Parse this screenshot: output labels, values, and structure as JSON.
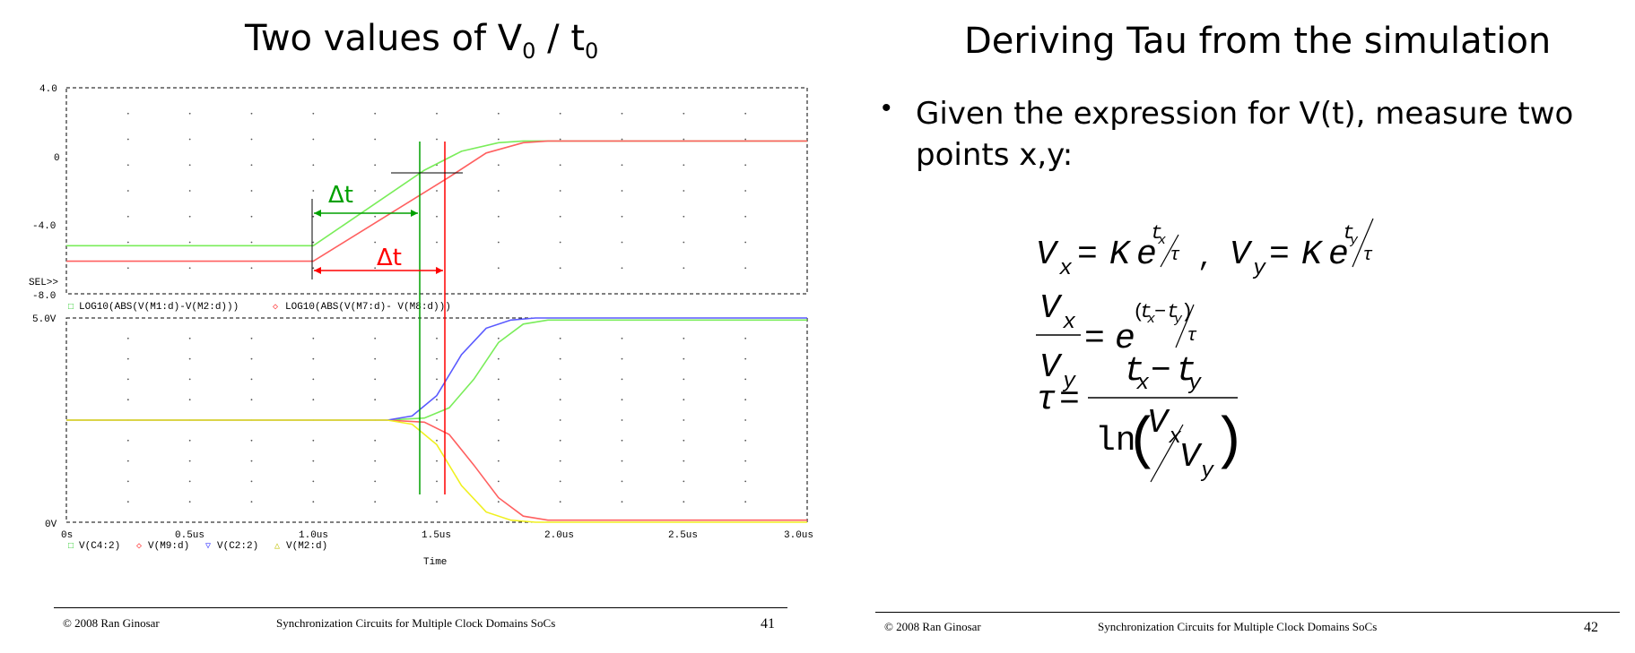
{
  "left_slide": {
    "title_main": "Two values of V",
    "title_sub0": "0",
    "title_slash": " / t",
    "title_sub1": "0",
    "footer": {
      "copyright": "© 2008 Ran Ginosar",
      "course": "Synchronization Circuits for Multiple Clock Domains SoCs",
      "page": "41"
    },
    "plot": {
      "top_axis": {
        "ticks": [
          "4.0",
          "0",
          "-4.0",
          "-8.0"
        ],
        "ylim": [
          -8,
          4
        ]
      },
      "bottom_axis": {
        "ticks": [
          "5.0V",
          "0V"
        ],
        "ylim": [
          0,
          5
        ]
      },
      "sel_label": "SEL>>",
      "x_ticks": [
        "0s",
        "0.5us",
        "1.0us",
        "1.5us",
        "2.0us",
        "2.5us",
        "3.0us"
      ],
      "xlim": [
        0,
        3.0
      ],
      "xlabel": "Time",
      "top_legend": [
        {
          "text": "LOG10(ABS(V(M1:d)-V(M2:d)))",
          "color": "#2ecc2e",
          "marker": "□"
        },
        {
          "text": "LOG10(ABS(V(M7:d)- V(M8:d)))",
          "color": "#ff4040",
          "marker": "◇"
        }
      ],
      "bottom_legend": [
        {
          "text": "V(C4:2)",
          "color": "#2ecc2e",
          "marker": "□"
        },
        {
          "text": "V(M9:d)",
          "color": "#ff4040",
          "marker": "◇"
        },
        {
          "text": "V(C2:2)",
          "color": "#4040ff",
          "marker": "▽"
        },
        {
          "text": "V(M2:d)",
          "color": "#e0e000",
          "marker": "△"
        }
      ],
      "annotations": {
        "delta_green": "Δt",
        "delta_red": "Δt"
      }
    }
  },
  "chart_data": [
    {
      "type": "line",
      "ylim": [
        -8,
        4
      ],
      "xlim": [
        0,
        3.0
      ],
      "series": [
        {
          "name": "LOG10(ABS(V(M1:d)-V(M2:d)))",
          "color": "#7aed5a",
          "x": [
            0,
            1.0,
            1.45,
            1.6,
            1.75,
            1.85,
            3.0
          ],
          "y": [
            -5.2,
            -5.2,
            -0.8,
            0.3,
            0.8,
            0.9,
            0.9
          ]
        },
        {
          "name": "LOG10(ABS(V(M7:d)- V(M8:d)))",
          "color": "#ff6060",
          "x": [
            0,
            1.0,
            1.55,
            1.7,
            1.85,
            1.95,
            3.0
          ],
          "y": [
            -6.1,
            -6.1,
            -1.2,
            0.2,
            0.8,
            0.9,
            0.9
          ]
        }
      ]
    },
    {
      "type": "line",
      "ylim": [
        0,
        5
      ],
      "xlim": [
        0,
        3.0
      ],
      "xlabel": "Time",
      "series": [
        {
          "name": "V(C4:2)",
          "color": "#7aed5a",
          "x": [
            0,
            1.3,
            1.45,
            1.55,
            1.65,
            1.75,
            1.85,
            1.95,
            3.0
          ],
          "y": [
            2.5,
            2.5,
            2.55,
            2.8,
            3.5,
            4.4,
            4.85,
            4.95,
            4.95
          ]
        },
        {
          "name": "V(M9:d)",
          "color": "#ff6060",
          "x": [
            0,
            1.3,
            1.45,
            1.55,
            1.65,
            1.75,
            1.85,
            1.95,
            3.0
          ],
          "y": [
            2.5,
            2.5,
            2.45,
            2.15,
            1.4,
            0.6,
            0.15,
            0.05,
            0.05
          ]
        },
        {
          "name": "V(C2:2)",
          "color": "#5a5aff",
          "x": [
            0,
            1.3,
            1.4,
            1.5,
            1.6,
            1.7,
            1.8,
            1.9,
            3.0
          ],
          "y": [
            2.5,
            2.5,
            2.6,
            3.1,
            4.1,
            4.75,
            4.95,
            5.0,
            5.0
          ]
        },
        {
          "name": "V(M2:d)",
          "color": "#f0f020",
          "x": [
            0,
            1.3,
            1.4,
            1.5,
            1.6,
            1.7,
            1.8,
            1.9,
            3.0
          ],
          "y": [
            2.5,
            2.5,
            2.4,
            1.9,
            0.9,
            0.25,
            0.05,
            0.0,
            0.0
          ]
        }
      ]
    }
  ],
  "right_slide": {
    "title": "Deriving Tau from the simulation",
    "bullet": "•",
    "bullet_text": "Given the expression for V(t), measure two points x,y:",
    "equations": {
      "V": "V",
      "K": "K",
      "e": "e",
      "eq": "=",
      "comma": ",",
      "x": "x",
      "y": "y",
      "tau": "τ",
      "t": "t",
      "minus": "−",
      "ln": "ln",
      "slash": "⁄",
      "lparen": "(",
      "rparen": ")"
    },
    "footer": {
      "copyright": "© 2008 Ran Ginosar",
      "course": "Synchronization Circuits for Multiple Clock Domains SoCs",
      "page": "42"
    }
  }
}
